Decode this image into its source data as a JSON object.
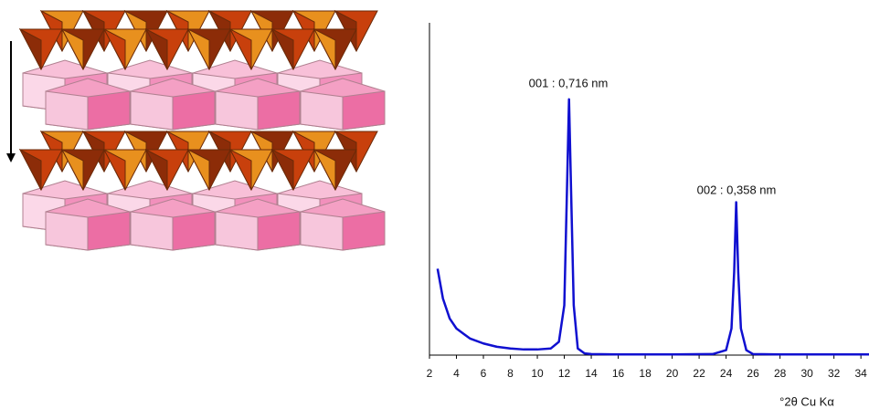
{
  "chart_data": {
    "type": "line",
    "x": [
      2.6,
      3,
      3.5,
      4,
      5,
      6,
      7,
      8,
      9,
      10,
      11,
      11.6,
      12,
      12.2,
      12.35,
      12.5,
      12.7,
      13,
      13.5,
      14,
      16,
      20,
      23,
      24,
      24.4,
      24.6,
      24.75,
      24.9,
      25.1,
      25.5,
      26,
      28,
      32,
      34.6
    ],
    "series": [
      {
        "color": "#1010d0",
        "values": [
          26,
          17,
          11,
          8,
          5,
          3.5,
          2.5,
          2,
          1.7,
          1.7,
          2,
          4,
          15,
          50,
          77,
          50,
          15,
          2,
          0.5,
          0.3,
          0.2,
          0.2,
          0.3,
          1.5,
          8,
          25,
          46,
          25,
          8,
          1.5,
          0.3,
          0.2,
          0.2,
          0.2
        ]
      }
    ],
    "xlim": [
      2,
      34.6
    ],
    "ylim": [
      0,
      100
    ],
    "xticks": [
      2,
      4,
      6,
      8,
      10,
      12,
      14,
      16,
      18,
      20,
      22,
      24,
      26,
      28,
      30,
      32,
      34
    ],
    "xlabel": "°2θ Cu Kα",
    "annotations": [
      "001 : 0,716 nm",
      "002 : 0,358 nm"
    ]
  }
}
